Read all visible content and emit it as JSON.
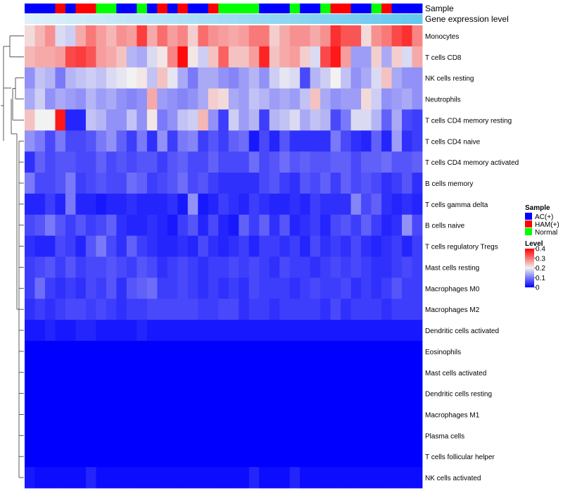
{
  "chart_data": {
    "type": "heatmap",
    "annotation_tracks": [
      "Sample",
      "Gene expression level"
    ],
    "legend": {
      "sample_title": "Sample",
      "sample_levels": [
        {
          "label": "AC(+)",
          "color": "#0000ff"
        },
        {
          "label": "HAM(+)",
          "color": "#ff0000"
        },
        {
          "label": "Normal",
          "color": "#00ff00"
        }
      ],
      "level_title": "Level",
      "level_ticks": [
        0.4,
        0.3,
        0.2,
        0.1,
        0
      ],
      "level_ticks_text": [
        "0.4",
        "0.3",
        "0.2",
        "0.1",
        "0"
      ],
      "colorscale": [
        {
          "value": 0,
          "color": "#0000ff"
        },
        {
          "value": 0.2,
          "color": "#f2f2f2"
        },
        {
          "value": 0.4,
          "color": "#ff0000"
        }
      ]
    },
    "level_range": [
      0,
      0.4
    ],
    "sample_groups": [
      "AC(+)",
      "AC(+)",
      "AC(+)",
      "HAM(+)",
      "AC(+)",
      "HAM(+)",
      "HAM(+)",
      "Normal",
      "Normal",
      "AC(+)",
      "AC(+)",
      "Normal",
      "AC(+)",
      "HAM(+)",
      "AC(+)",
      "HAM(+)",
      "AC(+)",
      "AC(+)",
      "HAM(+)",
      "Normal",
      "Normal",
      "Normal",
      "Normal",
      "AC(+)",
      "AC(+)",
      "AC(+)",
      "Normal",
      "AC(+)",
      "AC(+)",
      "Normal",
      "HAM(+)",
      "HAM(+)",
      "AC(+)",
      "AC(+)",
      "Normal",
      "HAM(+)",
      "AC(+)",
      "AC(+)",
      "AC(+)"
    ],
    "gene_expression_level": [
      0.03,
      0.04,
      0.05,
      0.06,
      0.07,
      0.08,
      0.09,
      0.1,
      0.11,
      0.12,
      0.13,
      0.14,
      0.15,
      0.16,
      0.17,
      0.18,
      0.19,
      0.2,
      0.21,
      0.22,
      0.23,
      0.24,
      0.25,
      0.26,
      0.27,
      0.28,
      0.29,
      0.3,
      0.31,
      0.32,
      0.33,
      0.34,
      0.35,
      0.36,
      0.37,
      0.38,
      0.39,
      0.4,
      0.41
    ],
    "cell_types": [
      "Monocytes",
      "T cells CD8",
      "NK cells resting",
      "Neutrophils",
      "T cells CD4 memory resting",
      "T cells CD4 naive",
      "T cells CD4 memory activated",
      "B cells memory",
      "T cells gamma delta",
      "B cells naive",
      "T cells regulatory  Tregs",
      "Mast cells resting",
      "Macrophages M0",
      "Macrophages M2",
      "Dendritic cells activated",
      "Eosinophils",
      "Mast cells activated",
      "Dendritic cells resting",
      "Macrophages M1",
      "Plasma cells",
      "T cells follicular helper",
      "NK cells activated"
    ],
    "values": [
      [
        0.22,
        0.25,
        0.28,
        0.18,
        0.17,
        0.26,
        0.3,
        0.27,
        0.25,
        0.28,
        0.27,
        0.35,
        0.26,
        0.31,
        0.27,
        0.29,
        0.23,
        0.31,
        0.28,
        0.27,
        0.26,
        0.27,
        0.3,
        0.3,
        0.23,
        0.26,
        0.28,
        0.28,
        0.26,
        0.28,
        0.36,
        0.33,
        0.33,
        0.22,
        0.28,
        0.3,
        0.34,
        0.36,
        0.29
      ],
      [
        0.25,
        0.26,
        0.26,
        0.27,
        0.34,
        0.35,
        0.33,
        0.27,
        0.26,
        0.24,
        0.15,
        0.14,
        0.18,
        0.21,
        0.29,
        0.39,
        0.21,
        0.17,
        0.24,
        0.32,
        0.24,
        0.24,
        0.27,
        0.37,
        0.24,
        0.26,
        0.27,
        0.23,
        0.18,
        0.34,
        0.38,
        0.27,
        0.13,
        0.13,
        0.23,
        0.14,
        0.23,
        0.18,
        0.26
      ],
      [
        0.12,
        0.16,
        0.15,
        0.1,
        0.15,
        0.16,
        0.17,
        0.16,
        0.18,
        0.19,
        0.2,
        0.21,
        0.16,
        0.24,
        0.19,
        0.14,
        0.1,
        0.14,
        0.14,
        0.12,
        0.11,
        0.13,
        0.15,
        0.12,
        0.17,
        0.19,
        0.18,
        0.06,
        0.15,
        0.17,
        0.2,
        0.16,
        0.12,
        0.14,
        0.18,
        0.24,
        0.14,
        0.12,
        0.12
      ],
      [
        0.14,
        0.17,
        0.12,
        0.14,
        0.13,
        0.12,
        0.15,
        0.13,
        0.14,
        0.12,
        0.11,
        0.12,
        0.26,
        0.13,
        0.12,
        0.11,
        0.12,
        0.14,
        0.23,
        0.22,
        0.14,
        0.13,
        0.16,
        0.15,
        0.13,
        0.14,
        0.13,
        0.16,
        0.24,
        0.14,
        0.12,
        0.13,
        0.13,
        0.22,
        0.17,
        0.12,
        0.13,
        0.14,
        0.12
      ],
      [
        0.24,
        0.2,
        0.2,
        0.38,
        0.03,
        0.03,
        0.16,
        0.15,
        0.12,
        0.12,
        0.16,
        0.12,
        0.21,
        0.1,
        0.12,
        0.16,
        0.17,
        0.25,
        0.12,
        0.05,
        0.17,
        0.13,
        0.15,
        0.05,
        0.15,
        0.16,
        0.18,
        0.14,
        0.16,
        0.15,
        0.06,
        0.1,
        0.18,
        0.18,
        0.15,
        0.08,
        0.14,
        0.06,
        0.05
      ],
      [
        0.12,
        0.1,
        0.06,
        0.1,
        0.06,
        0.06,
        0.07,
        0.1,
        0.12,
        0.08,
        0.05,
        0.1,
        0.04,
        0.12,
        0.05,
        0.1,
        0.11,
        0.05,
        0.07,
        0.05,
        0.08,
        0.09,
        0.02,
        0.06,
        0.03,
        0.07,
        0.04,
        0.04,
        0.04,
        0.04,
        0.1,
        0.06,
        0.04,
        0.03,
        0.08,
        0.03,
        0.13,
        0.04,
        0.05
      ],
      [
        0.04,
        0.08,
        0.06,
        0.07,
        0.07,
        0.06,
        0.06,
        0.08,
        0.06,
        0.07,
        0.06,
        0.07,
        0.07,
        0.05,
        0.07,
        0.08,
        0.06,
        0.06,
        0.08,
        0.06,
        0.06,
        0.06,
        0.09,
        0.06,
        0.07,
        0.09,
        0.07,
        0.08,
        0.07,
        0.07,
        0.08,
        0.08,
        0.06,
        0.08,
        0.08,
        0.09,
        0.07,
        0.07,
        0.08
      ],
      [
        0.1,
        0.06,
        0.06,
        0.07,
        0.1,
        0.05,
        0.06,
        0.07,
        0.06,
        0.06,
        0.09,
        0.08,
        0.05,
        0.06,
        0.07,
        0.09,
        0.06,
        0.07,
        0.05,
        0.04,
        0.04,
        0.04,
        0.04,
        0.06,
        0.07,
        0.05,
        0.04,
        0.07,
        0.06,
        0.08,
        0.05,
        0.08,
        0.06,
        0.07,
        0.06,
        0.04,
        0.05,
        0.07,
        0.04
      ],
      [
        0.03,
        0.03,
        0.05,
        0.03,
        0.1,
        0.03,
        0.03,
        0.02,
        0.03,
        0.03,
        0.04,
        0.03,
        0.03,
        0.03,
        0.04,
        0.02,
        0.12,
        0.02,
        0.03,
        0.05,
        0.04,
        0.03,
        0.05,
        0.04,
        0.03,
        0.03,
        0.04,
        0.03,
        0.05,
        0.04,
        0.04,
        0.04,
        0.11,
        0.06,
        0.08,
        0.04,
        0.03,
        0.04,
        0.03
      ],
      [
        0.06,
        0.07,
        0.1,
        0.07,
        0.05,
        0.07,
        0.05,
        0.06,
        0.08,
        0.04,
        0.03,
        0.03,
        0.04,
        0.03,
        0.02,
        0.05,
        0.07,
        0.03,
        0.06,
        0.03,
        0.02,
        0.08,
        0.05,
        0.08,
        0.04,
        0.07,
        0.03,
        0.04,
        0.05,
        0.03,
        0.06,
        0.07,
        0.05,
        0.08,
        0.05,
        0.03,
        0.04,
        0.12,
        0.06
      ],
      [
        0.04,
        0.03,
        0.03,
        0.06,
        0.05,
        0.03,
        0.07,
        0.1,
        0.06,
        0.04,
        0.08,
        0.05,
        0.04,
        0.03,
        0.03,
        0.04,
        0.03,
        0.06,
        0.04,
        0.03,
        0.04,
        0.05,
        0.03,
        0.05,
        0.05,
        0.04,
        0.05,
        0.03,
        0.06,
        0.04,
        0.05,
        0.04,
        0.06,
        0.04,
        0.03,
        0.04,
        0.05,
        0.03,
        0.05
      ],
      [
        0.05,
        0.06,
        0.07,
        0.05,
        0.07,
        0.05,
        0.06,
        0.06,
        0.07,
        0.06,
        0.05,
        0.07,
        0.06,
        0.04,
        0.05,
        0.06,
        0.05,
        0.04,
        0.05,
        0.05,
        0.06,
        0.05,
        0.06,
        0.05,
        0.04,
        0.06,
        0.05,
        0.05,
        0.04,
        0.05,
        0.06,
        0.05,
        0.06,
        0.05,
        0.04,
        0.04,
        0.05,
        0.06,
        0.05
      ],
      [
        0.05,
        0.09,
        0.05,
        0.04,
        0.05,
        0.04,
        0.06,
        0.05,
        0.07,
        0.04,
        0.07,
        0.08,
        0.09,
        0.05,
        0.05,
        0.06,
        0.05,
        0.04,
        0.05,
        0.04,
        0.05,
        0.04,
        0.06,
        0.05,
        0.05,
        0.05,
        0.04,
        0.05,
        0.06,
        0.05,
        0.05,
        0.06,
        0.04,
        0.05,
        0.04,
        0.05,
        0.07,
        0.05,
        0.05
      ],
      [
        0.04,
        0.05,
        0.04,
        0.05,
        0.06,
        0.06,
        0.05,
        0.06,
        0.05,
        0.04,
        0.05,
        0.05,
        0.06,
        0.06,
        0.06,
        0.06,
        0.06,
        0.05,
        0.05,
        0.06,
        0.06,
        0.04,
        0.05,
        0.05,
        0.04,
        0.05,
        0.05,
        0.05,
        0.05,
        0.04,
        0.06,
        0.04,
        0.05,
        0.05,
        0.05,
        0.04,
        0.05,
        0.05,
        0.05
      ],
      [
        0.02,
        0.02,
        0.03,
        0.02,
        0.02,
        0.03,
        0.03,
        0.02,
        0.02,
        0.02,
        0.02,
        0.03,
        0.02,
        0.02,
        0.02,
        0.02,
        0.02,
        0.02,
        0.02,
        0.02,
        0.02,
        0.02,
        0.02,
        0.02,
        0.02,
        0.02,
        0.02,
        0.02,
        0.02,
        0.02,
        0.02,
        0.02,
        0.02,
        0.02,
        0.02,
        0.02,
        0.02,
        0.02,
        0.02
      ],
      [
        0,
        0,
        0,
        0,
        0,
        0,
        0,
        0,
        0,
        0,
        0,
        0,
        0,
        0,
        0,
        0,
        0,
        0,
        0,
        0,
        0,
        0,
        0,
        0,
        0,
        0,
        0,
        0,
        0,
        0,
        0,
        0,
        0,
        0,
        0,
        0,
        0,
        0,
        0
      ],
      [
        0,
        0,
        0,
        0,
        0,
        0,
        0,
        0,
        0,
        0,
        0,
        0,
        0,
        0,
        0,
        0,
        0,
        0,
        0,
        0,
        0,
        0,
        0,
        0,
        0,
        0,
        0,
        0,
        0,
        0,
        0,
        0,
        0,
        0,
        0,
        0,
        0,
        0,
        0
      ],
      [
        0,
        0,
        0,
        0,
        0,
        0,
        0,
        0,
        0,
        0,
        0,
        0,
        0,
        0,
        0,
        0,
        0,
        0,
        0,
        0,
        0,
        0,
        0,
        0,
        0,
        0,
        0,
        0,
        0,
        0,
        0,
        0,
        0,
        0,
        0,
        0,
        0,
        0,
        0
      ],
      [
        0,
        0,
        0,
        0,
        0,
        0,
        0,
        0,
        0,
        0,
        0,
        0,
        0,
        0,
        0,
        0,
        0,
        0,
        0,
        0,
        0,
        0,
        0,
        0,
        0,
        0,
        0,
        0,
        0,
        0,
        0,
        0,
        0,
        0,
        0,
        0,
        0,
        0,
        0
      ],
      [
        0,
        0,
        0,
        0,
        0,
        0,
        0,
        0,
        0,
        0,
        0,
        0,
        0,
        0,
        0,
        0,
        0,
        0,
        0,
        0,
        0,
        0,
        0,
        0,
        0,
        0,
        0,
        0,
        0,
        0,
        0,
        0,
        0,
        0,
        0,
        0,
        0,
        0,
        0
      ],
      [
        0,
        0,
        0,
        0,
        0,
        0,
        0,
        0,
        0,
        0,
        0,
        0,
        0,
        0,
        0,
        0,
        0,
        0,
        0,
        0,
        0,
        0,
        0,
        0,
        0,
        0,
        0,
        0,
        0,
        0,
        0,
        0,
        0,
        0,
        0,
        0,
        0,
        0,
        0
      ],
      [
        0.02,
        0.01,
        0.01,
        0.01,
        0.01,
        0.01,
        0.03,
        0.01,
        0.01,
        0.01,
        0.01,
        0.01,
        0.01,
        0.01,
        0.01,
        0.01,
        0.01,
        0.01,
        0.01,
        0.01,
        0.01,
        0.01,
        0.03,
        0.01,
        0.01,
        0.01,
        0.03,
        0.01,
        0.01,
        0.01,
        0.01,
        0.01,
        0.01,
        0.01,
        0.01,
        0.01,
        0.01,
        0.01,
        0.01
      ]
    ]
  }
}
